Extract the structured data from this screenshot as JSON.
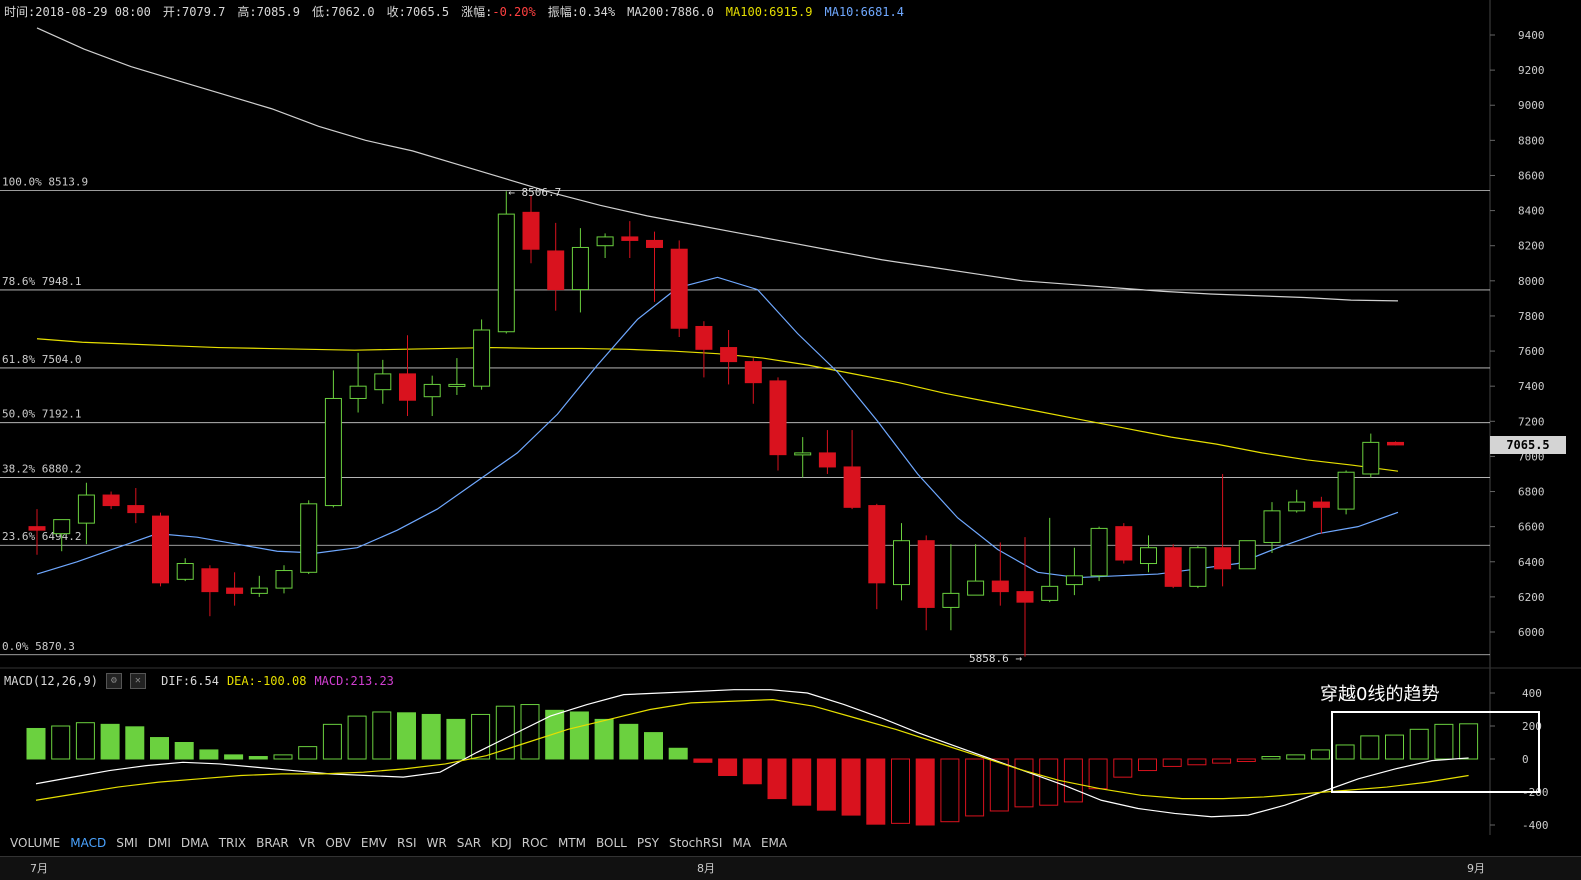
{
  "info_bar": {
    "time": "时间:2018-08-29 08:00",
    "open": "开:7079.7",
    "high": "高:7085.9",
    "low": "低:7062.0",
    "close": "收:7065.5",
    "change_label": "涨幅:",
    "change_value": "-0.20%",
    "amplitude": "振幅:0.34%",
    "ma200": "MA200:7886.0",
    "ma100": "MA100:6915.9",
    "ma10": "MA10:6681.4"
  },
  "colors": {
    "up": "#6bd13f",
    "down": "#d9121e",
    "ma200": "#d0d0d0",
    "ma100": "#e6df00",
    "ma10": "#6fa8ff",
    "grid": "#cfcfcf",
    "dif": "#ffffff",
    "dea": "#e6df00",
    "macd_label": "#d13fd1"
  },
  "current_price_tag": "7065.5",
  "macd_header": {
    "title": "MACD(12,26,9)",
    "dif": "DIF:6.54",
    "dea": "DEA:-100.08",
    "macd": "MACD:213.23"
  },
  "annotation": "穿越0线的趋势",
  "tabs": [
    "VOLUME",
    "MACD",
    "SMI",
    "DMI",
    "DMA",
    "TRIX",
    "BRAR",
    "VR",
    "OBV",
    "EMV",
    "RSI",
    "WR",
    "SAR",
    "KDJ",
    "ROC",
    "MTM",
    "BOLL",
    "PSY",
    "StochRSI",
    "MA",
    "EMA"
  ],
  "active_tab": "MACD",
  "months": [
    "7月",
    "8月",
    "9月"
  ],
  "chart_data": [
    {
      "type": "candlestick",
      "y_axis_ticks": [
        6000,
        6200,
        6400,
        6600,
        6800,
        7000,
        7200,
        7400,
        7600,
        7800,
        8000,
        8200,
        8400,
        8600,
        8800,
        9000,
        9200,
        9400
      ],
      "ylim": [
        5840,
        9480
      ],
      "fib_levels": [
        {
          "label": "100.0% 8513.9",
          "value": 8513.9
        },
        {
          "label": "78.6% 7948.1",
          "value": 7948.1
        },
        {
          "label": "61.8% 7504.0",
          "value": 7504.0
        },
        {
          "label": "50.0% 7192.1",
          "value": 7192.1
        },
        {
          "label": "38.2% 6880.2",
          "value": 6880.2
        },
        {
          "label": "23.6% 6494.2",
          "value": 6494.2
        },
        {
          "label": "0.0% 5870.3",
          "value": 5870.3
        }
      ],
      "max_label": "8506.7",
      "min_label": "5858.6",
      "candles": [
        {
          "o": 6600,
          "h": 6700,
          "l": 6440,
          "c": 6580
        },
        {
          "o": 6560,
          "h": 6640,
          "l": 6460,
          "c": 6640
        },
        {
          "o": 6620,
          "h": 6850,
          "l": 6500,
          "c": 6780
        },
        {
          "o": 6780,
          "h": 6800,
          "l": 6700,
          "c": 6720
        },
        {
          "o": 6720,
          "h": 6820,
          "l": 6620,
          "c": 6680
        },
        {
          "o": 6660,
          "h": 6680,
          "l": 6260,
          "c": 6280
        },
        {
          "o": 6300,
          "h": 6420,
          "l": 6290,
          "c": 6390
        },
        {
          "o": 6360,
          "h": 6380,
          "l": 6090,
          "c": 6230
        },
        {
          "o": 6250,
          "h": 6340,
          "l": 6150,
          "c": 6220
        },
        {
          "o": 6220,
          "h": 6320,
          "l": 6200,
          "c": 6250
        },
        {
          "o": 6250,
          "h": 6380,
          "l": 6220,
          "c": 6350
        },
        {
          "o": 6340,
          "h": 6750,
          "l": 6330,
          "c": 6730
        },
        {
          "o": 6720,
          "h": 7490,
          "l": 6710,
          "c": 7330
        },
        {
          "o": 7330,
          "h": 7590,
          "l": 7250,
          "c": 7400
        },
        {
          "o": 7380,
          "h": 7550,
          "l": 7300,
          "c": 7470
        },
        {
          "o": 7470,
          "h": 7690,
          "l": 7230,
          "c": 7320
        },
        {
          "o": 7340,
          "h": 7460,
          "l": 7230,
          "c": 7410
        },
        {
          "o": 7410,
          "h": 7560,
          "l": 7350,
          "c": 7410
        },
        {
          "o": 7400,
          "h": 7780,
          "l": 7380,
          "c": 7720
        },
        {
          "o": 7710,
          "h": 8510,
          "l": 7700,
          "c": 8380
        },
        {
          "o": 8390,
          "h": 8490,
          "l": 8100,
          "c": 8180
        },
        {
          "o": 8170,
          "h": 8330,
          "l": 7830,
          "c": 7950
        },
        {
          "o": 7950,
          "h": 8300,
          "l": 7820,
          "c": 8190
        },
        {
          "o": 8200,
          "h": 8270,
          "l": 8130,
          "c": 8250
        },
        {
          "o": 8250,
          "h": 8340,
          "l": 8130,
          "c": 8230
        },
        {
          "o": 8230,
          "h": 8280,
          "l": 7880,
          "c": 8190
        },
        {
          "o": 8180,
          "h": 8230,
          "l": 7680,
          "c": 7730
        },
        {
          "o": 7740,
          "h": 7770,
          "l": 7450,
          "c": 7610
        },
        {
          "o": 7620,
          "h": 7720,
          "l": 7410,
          "c": 7540
        },
        {
          "o": 7540,
          "h": 7560,
          "l": 7300,
          "c": 7420
        },
        {
          "o": 7430,
          "h": 7450,
          "l": 6920,
          "c": 7010
        },
        {
          "o": 7010,
          "h": 7110,
          "l": 6880,
          "c": 7020
        },
        {
          "o": 7020,
          "h": 7150,
          "l": 6900,
          "c": 6940
        },
        {
          "o": 6940,
          "h": 7150,
          "l": 6700,
          "c": 6710
        },
        {
          "o": 6720,
          "h": 6730,
          "l": 6130,
          "c": 6280
        },
        {
          "o": 6270,
          "h": 6620,
          "l": 6180,
          "c": 6520
        },
        {
          "o": 6520,
          "h": 6550,
          "l": 6010,
          "c": 6140
        },
        {
          "o": 6140,
          "h": 6500,
          "l": 6010,
          "c": 6220
        },
        {
          "o": 6210,
          "h": 6500,
          "l": 6210,
          "c": 6290
        },
        {
          "o": 6290,
          "h": 6510,
          "l": 6150,
          "c": 6230
        },
        {
          "o": 6230,
          "h": 6540,
          "l": 5860,
          "c": 6170
        },
        {
          "o": 6180,
          "h": 6650,
          "l": 6170,
          "c": 6260
        },
        {
          "o": 6270,
          "h": 6480,
          "l": 6210,
          "c": 6320
        },
        {
          "o": 6320,
          "h": 6600,
          "l": 6290,
          "c": 6590
        },
        {
          "o": 6600,
          "h": 6620,
          "l": 6390,
          "c": 6410
        },
        {
          "o": 6390,
          "h": 6550,
          "l": 6340,
          "c": 6480
        },
        {
          "o": 6480,
          "h": 6500,
          "l": 6250,
          "c": 6260
        },
        {
          "o": 6260,
          "h": 6490,
          "l": 6250,
          "c": 6480
        },
        {
          "o": 6480,
          "h": 6900,
          "l": 6260,
          "c": 6360
        },
        {
          "o": 6360,
          "h": 6520,
          "l": 6360,
          "c": 6520
        },
        {
          "o": 6510,
          "h": 6740,
          "l": 6450,
          "c": 6690
        },
        {
          "o": 6690,
          "h": 6810,
          "l": 6680,
          "c": 6740
        },
        {
          "o": 6740,
          "h": 6770,
          "l": 6560,
          "c": 6710
        },
        {
          "o": 6700,
          "h": 6920,
          "l": 6670,
          "c": 6910
        },
        {
          "o": 6900,
          "h": 7130,
          "l": 6880,
          "c": 7080
        },
        {
          "o": 7079.7,
          "h": 7085.9,
          "l": 7062.0,
          "c": 7065.5
        }
      ],
      "ma200": [
        9440,
        9320,
        9220,
        9140,
        9060,
        8980,
        8880,
        8800,
        8740,
        8660,
        8580,
        8500,
        8430,
        8370,
        8320,
        8270,
        8220,
        8170,
        8120,
        8080,
        8040,
        8000,
        7980,
        7960,
        7940,
        7925,
        7915,
        7905,
        7890,
        7886
      ],
      "ma100": [
        7670,
        7650,
        7640,
        7630,
        7620,
        7615,
        7610,
        7605,
        7610,
        7615,
        7620,
        7615,
        7615,
        7610,
        7600,
        7585,
        7560,
        7520,
        7470,
        7420,
        7360,
        7310,
        7260,
        7210,
        7160,
        7110,
        7070,
        7020,
        6980,
        6950,
        6915.9
      ],
      "ma10": [
        6330,
        6400,
        6480,
        6560,
        6540,
        6500,
        6460,
        6450,
        6480,
        6580,
        6700,
        6860,
        7020,
        7240,
        7520,
        7780,
        7960,
        8020,
        7950,
        7700,
        7480,
        7200,
        6900,
        6650,
        6470,
        6340,
        6310,
        6320,
        6330,
        6360,
        6390,
        6480,
        6560,
        6600,
        6681.4
      ]
    },
    {
      "type": "bar",
      "name": "MACD",
      "y_axis_ticks": [
        400,
        200,
        0,
        -200,
        -400
      ],
      "ylim": [
        -420,
        420
      ],
      "values": [
        185,
        200,
        220,
        210,
        195,
        130,
        100,
        55,
        25,
        15,
        25,
        75,
        210,
        260,
        285,
        280,
        270,
        240,
        270,
        320,
        330,
        295,
        285,
        240,
        210,
        160,
        65,
        -20,
        -100,
        -150,
        -240,
        -280,
        -310,
        -340,
        -395,
        -390,
        -400,
        -380,
        -345,
        -315,
        -290,
        -280,
        -260,
        -180,
        -110,
        -70,
        -45,
        -35,
        -25,
        -15,
        15,
        25,
        55,
        85,
        140,
        145,
        180,
        210,
        213.23
      ],
      "dif": [
        -150,
        -110,
        -70,
        -40,
        -20,
        -30,
        -50,
        -70,
        -90,
        -100,
        -110,
        -80,
        40,
        150,
        260,
        330,
        390,
        400,
        410,
        420,
        420,
        400,
        330,
        250,
        160,
        80,
        0,
        -80,
        -160,
        -250,
        -300,
        -330,
        -350,
        -340,
        -280,
        -200,
        -120,
        -60,
        -10,
        6.54
      ],
      "dea": [
        -250,
        -210,
        -170,
        -140,
        -120,
        -100,
        -90,
        -90,
        -80,
        -60,
        -30,
        20,
        100,
        180,
        240,
        300,
        340,
        350,
        360,
        320,
        250,
        180,
        100,
        20,
        -60,
        -130,
        -180,
        -220,
        -240,
        -240,
        -230,
        -210,
        -190,
        -170,
        -140,
        -100.08
      ]
    }
  ]
}
